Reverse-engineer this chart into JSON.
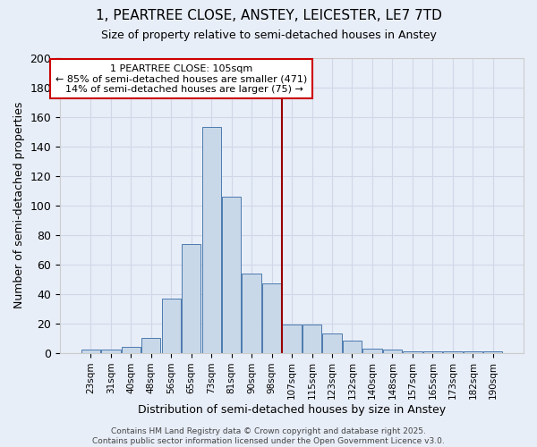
{
  "title": "1, PEARTREE CLOSE, ANSTEY, LEICESTER, LE7 7TD",
  "subtitle": "Size of property relative to semi-detached houses in Anstey",
  "xlabel": "Distribution of semi-detached houses by size in Anstey",
  "ylabel": "Number of semi-detached properties",
  "categories": [
    "23sqm",
    "31sqm",
    "40sqm",
    "48sqm",
    "56sqm",
    "65sqm",
    "73sqm",
    "81sqm",
    "90sqm",
    "98sqm",
    "107sqm",
    "115sqm",
    "123sqm",
    "132sqm",
    "140sqm",
    "148sqm",
    "157sqm",
    "165sqm",
    "173sqm",
    "182sqm",
    "190sqm"
  ],
  "values": [
    2,
    2,
    4,
    10,
    37,
    74,
    153,
    106,
    54,
    47,
    19,
    19,
    13,
    8,
    3,
    2,
    1,
    1,
    1,
    1,
    1
  ],
  "bar_color": "#c8d8e8",
  "bar_edge_color": "#4c7ab0",
  "bar_width": 0.95,
  "property_line_x": 9.5,
  "vline_color": "#990000",
  "annotation_line1": "1 PEARTREE CLOSE: 105sqm",
  "annotation_line2": "← 85% of semi-detached houses are smaller (471)",
  "annotation_line3": "  14% of semi-detached houses are larger (75) →",
  "annotation_box_color": "#ffffff",
  "annotation_box_edge": "#cc0000",
  "ylim": [
    0,
    200
  ],
  "yticks": [
    0,
    20,
    40,
    60,
    80,
    100,
    120,
    140,
    160,
    180,
    200
  ],
  "background_color": "#e8eef8",
  "grid_color": "#d0d8e8",
  "footer_line1": "Contains HM Land Registry data © Crown copyright and database right 2025.",
  "footer_line2": "Contains public sector information licensed under the Open Government Licence v3.0.",
  "title_fontsize": 11,
  "subtitle_fontsize": 9,
  "ylabel_fontsize": 9,
  "xlabel_fontsize": 9,
  "annotation_fontsize": 8,
  "footer_fontsize": 6.5
}
